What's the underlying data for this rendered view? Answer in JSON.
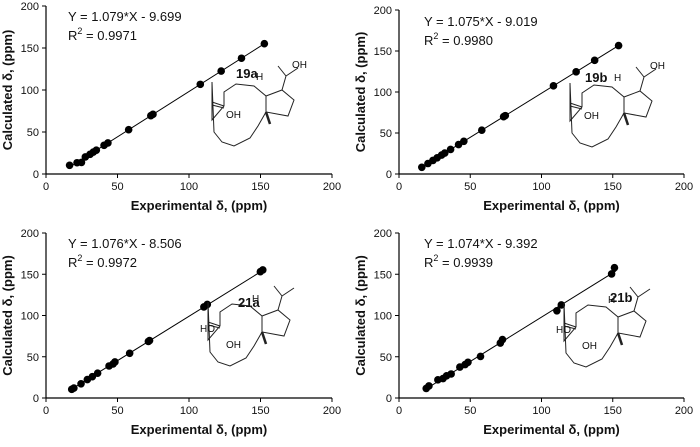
{
  "chart_data": [
    {
      "type": "scatter",
      "id": "19a",
      "compound_label": "19a",
      "xlabel": "Experimental δ, (ppm)",
      "ylabel": "Calculated δ, (ppm)",
      "xlim": [
        0,
        200
      ],
      "ylim": [
        0,
        200
      ],
      "xticks": [
        "0",
        "50",
        "100",
        "150",
        "200"
      ],
      "yticks": [
        "0",
        "50",
        "100",
        "150",
        "200"
      ],
      "equation": "Y = 1.079*X - 9.699",
      "r2_prefix": "R",
      "r2_sup": "2",
      "r2_suffix": " = 0.9971",
      "fit": {
        "slope": 1.079,
        "intercept": -9.699
      },
      "structure_labels": [
        "OH",
        "H",
        "OH"
      ],
      "x": [
        16.5,
        21.7,
        24.8,
        27.5,
        30.8,
        33.1,
        35.2,
        40.6,
        43.3,
        57.8,
        73.3,
        74.8,
        107.9,
        122.5,
        136.7,
        152.7
      ],
      "y": [
        10.4,
        13.4,
        13.8,
        20.3,
        23.4,
        26.1,
        28.4,
        34.1,
        37.0,
        52.7,
        69.4,
        71.0,
        106.7,
        122.5,
        137.8,
        155.1
      ]
    },
    {
      "type": "scatter",
      "id": "19b",
      "compound_label": "19b",
      "xlabel": "Experimental δ, (ppm)",
      "ylabel": "Calculated δ, (ppm)",
      "xlim": [
        0,
        200
      ],
      "ylim": [
        0,
        200
      ],
      "xticks": [
        "0",
        "50",
        "100",
        "150",
        "200"
      ],
      "yticks": [
        "0",
        "50",
        "100",
        "150",
        "200"
      ],
      "equation": "Y = 1.075*X - 9.019",
      "r2_prefix": "R",
      "r2_sup": "2",
      "r2_suffix": " = 0.9980",
      "fit": {
        "slope": 1.075,
        "intercept": -9.019
      },
      "structure_labels": [
        "OH",
        "H",
        "OH"
      ],
      "x": [
        16.0,
        20.3,
        23.8,
        26.8,
        29.9,
        32.1,
        36.2,
        41.8,
        45.5,
        58.1,
        73.4,
        74.6,
        108.4,
        124.3,
        137.3,
        154.1
      ],
      "y": [
        8.2,
        12.8,
        16.6,
        19.8,
        23.1,
        25.5,
        29.9,
        35.9,
        39.9,
        53.4,
        69.9,
        71.2,
        107.5,
        124.6,
        138.6,
        156.6
      ]
    },
    {
      "type": "scatter",
      "id": "21a",
      "compound_label": "21a",
      "xlabel": "Experimental δ, (ppm)",
      "ylabel": "Calculated δ, (ppm)",
      "xlim": [
        0,
        200
      ],
      "ylim": [
        0,
        200
      ],
      "xticks": [
        "0",
        "50",
        "100",
        "150",
        "200"
      ],
      "yticks": [
        "0",
        "50",
        "100",
        "150",
        "200"
      ],
      "equation": "Y = 1.076*X - 8.506",
      "r2_prefix": "R",
      "r2_sup": "2",
      "r2_suffix": " = 0.9972",
      "fit": {
        "slope": 1.076,
        "intercept": -8.506
      },
      "structure_labels": [
        "HO",
        "OH",
        "H"
      ],
      "x": [
        18.0,
        19.5,
        24.5,
        28.9,
        32.4,
        36.1,
        44.1,
        46.9,
        48.2,
        58.5,
        71.6,
        72.4,
        110.4,
        112.8,
        149.9,
        151.6
      ],
      "y": [
        10.5,
        12.1,
        17.2,
        22.4,
        25.8,
        30.1,
        38.8,
        41.3,
        43.7,
        54.2,
        68.5,
        69.6,
        110.4,
        113.4,
        153.1,
        155.3
      ]
    },
    {
      "type": "scatter",
      "id": "21b",
      "compound_label": "21b",
      "xlabel": "Experimental δ, (ppm)",
      "ylabel": "Calculated δ, (ppm)",
      "xlim": [
        0,
        200
      ],
      "ylim": [
        0,
        200
      ],
      "xticks": [
        "0",
        "50",
        "100",
        "150",
        "200"
      ],
      "yticks": [
        "0",
        "50",
        "100",
        "150",
        "200"
      ],
      "equation": "Y = 1.074*X - 9.392",
      "r2_prefix": "R",
      "r2_sup": "2",
      "r2_suffix": " = 0.9939",
      "fit": {
        "slope": 1.074,
        "intercept": -9.392
      },
      "structure_labels": [
        "HO",
        "OH",
        "H"
      ],
      "x": [
        19.1,
        21.0,
        27.3,
        30.9,
        33.4,
        36.6,
        42.7,
        46.4,
        48.4,
        57.2,
        71.1,
        72.6,
        110.8,
        113.9,
        149.2,
        151.2
      ],
      "y": [
        11.6,
        14.6,
        22.0,
        23.6,
        26.9,
        29.1,
        37.5,
        40.5,
        43.3,
        50.4,
        66.6,
        70.8,
        105.7,
        112.8,
        150.4,
        157.9
      ]
    }
  ]
}
